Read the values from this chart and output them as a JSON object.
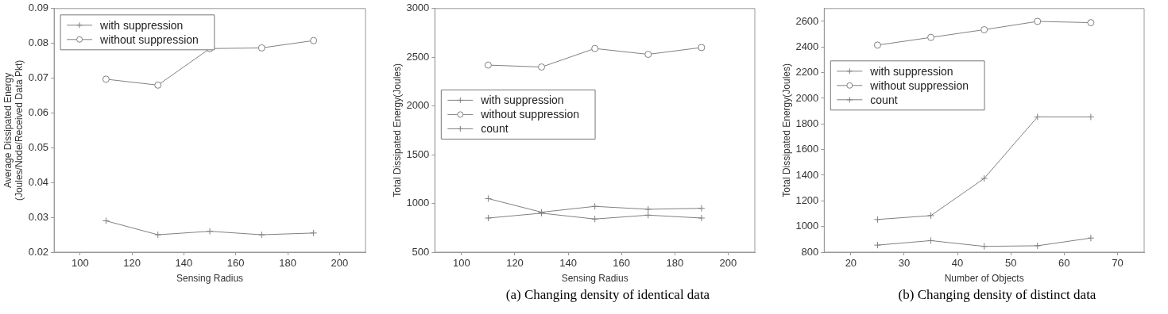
{
  "chart_data": [
    {
      "type": "line",
      "xlabel": "Sensing Radius",
      "ylabel": "Average Dissipated Energy\n(Joules/Node/Received Data Pkt)",
      "x": [
        110,
        130,
        150,
        170,
        190
      ],
      "xlim": [
        90,
        210
      ],
      "xticks": [
        100,
        120,
        140,
        160,
        180,
        200
      ],
      "ylim": [
        0.02,
        0.09
      ],
      "yticks": [
        0.02,
        0.03,
        0.04,
        0.05,
        0.06,
        0.07,
        0.08,
        0.09
      ],
      "grid": false,
      "legend": "top left",
      "series": [
        {
          "name": "with suppression",
          "color": "#808080",
          "marker": "cross",
          "values": [
            0.029,
            0.025,
            0.026,
            0.025,
            0.0255
          ]
        },
        {
          "name": "without suppression",
          "color": "#808080",
          "marker": "circle",
          "values": [
            0.0697,
            0.068,
            0.0785,
            0.0787,
            0.0808
          ]
        }
      ]
    },
    {
      "type": "line",
      "xlabel": "Sensing Radius",
      "ylabel": "Total Dissipated Energy(Joules)",
      "x": [
        110,
        130,
        150,
        170,
        190
      ],
      "xlim": [
        90,
        210
      ],
      "xticks": [
        100,
        120,
        140,
        160,
        180,
        200
      ],
      "ylim": [
        500,
        3000
      ],
      "yticks": [
        500,
        1000,
        1500,
        2000,
        2500,
        3000
      ],
      "grid": false,
      "legend": "left",
      "annotations": [
        "(a) Changing density of identical data"
      ],
      "series": [
        {
          "name": "with suppression",
          "color": "#808080",
          "marker": "cross",
          "values": [
            1050,
            910,
            970,
            940,
            950
          ]
        },
        {
          "name": "without suppression",
          "color": "#808080",
          "marker": "circle",
          "values": [
            2420,
            2400,
            2590,
            2530,
            2600
          ]
        },
        {
          "name": "count",
          "color": "#808080",
          "marker": "cross",
          "values": [
            850,
            900,
            840,
            880,
            850
          ]
        }
      ]
    },
    {
      "type": "line",
      "xlabel": "Number of Objects",
      "ylabel": "Total Dissipated Energy(Joules)",
      "x": [
        25,
        35,
        45,
        55,
        65
      ],
      "xlim": [
        15,
        75
      ],
      "xticks": [
        20,
        30,
        40,
        50,
        60,
        70
      ],
      "ylim": [
        800,
        2700
      ],
      "yticks": [
        800,
        1000,
        1200,
        1400,
        1600,
        1800,
        2000,
        2200,
        2400,
        2600
      ],
      "grid": false,
      "legend": "top left",
      "annotations": [
        "(b) Changing density of distinct data"
      ],
      "series": [
        {
          "name": "with suppression",
          "color": "#808080",
          "marker": "cross",
          "values": [
            1055,
            1085,
            1375,
            1855,
            1855
          ]
        },
        {
          "name": "without suppression",
          "color": "#808080",
          "marker": "circle",
          "values": [
            2415,
            2475,
            2535,
            2600,
            2590
          ]
        },
        {
          "name": "count",
          "color": "#808080",
          "marker": "cross",
          "values": [
            855,
            890,
            845,
            850,
            910
          ]
        }
      ]
    }
  ]
}
